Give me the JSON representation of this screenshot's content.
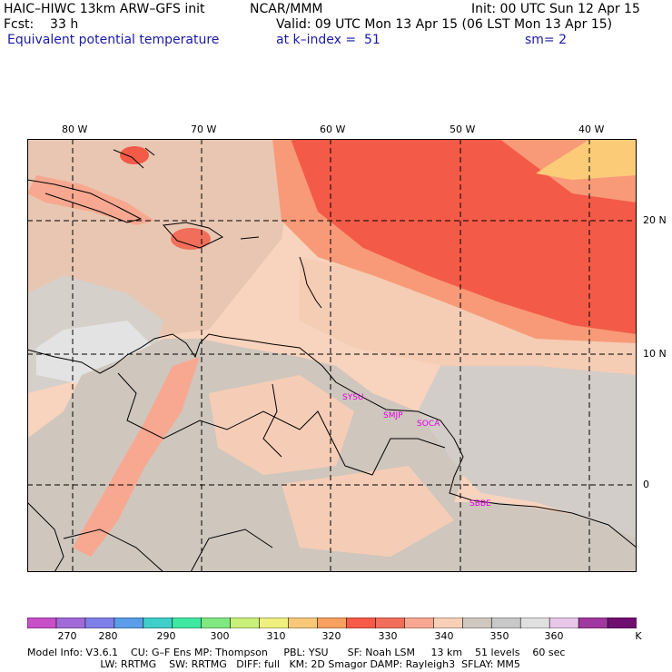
{
  "header": {
    "line1_left": "HAIC–HIWC 13km ARW–GFS init",
    "line1_center": "NCAR/MMM",
    "line1_right": "Init: 00 UTC Sun 12 Apr 15",
    "line2_left": "Fcst:    33 h",
    "line2_right": "Valid: 09 UTC Mon 13 Apr 15 (06 LST Mon 13 Apr 15)",
    "line3_left": "Equivalent potential temperature",
    "line3_center": "at k–index =  51",
    "line3_right": "sm= 2"
  },
  "map": {
    "lon_labels": [
      "80 W",
      "70 W",
      "60 W",
      "50 W",
      "40 W"
    ],
    "lat_labels": [
      "20 N",
      "10 N",
      "0"
    ],
    "stations": [
      "SYSU",
      "SMJP",
      "SOCA",
      "SBBE"
    ]
  },
  "colorbar": {
    "colors": [
      "#c94fc9",
      "#a06ad8",
      "#7f7fe8",
      "#5a9de8",
      "#3fcfc8",
      "#3fe8a0",
      "#80e880",
      "#c8f07a",
      "#f0f080",
      "#f8c878",
      "#f8a060",
      "#f85a48",
      "#f06e5a",
      "#f8a890",
      "#f8d0b8",
      "#d0c8c0",
      "#c8c8c8",
      "#e0e0e0",
      "#e8c8e8",
      "#a0389f",
      "#6f0f70"
    ],
    "tick_labels": [
      "270",
      "280",
      "290",
      "300",
      "310",
      "320",
      "330",
      "340",
      "350",
      "360"
    ],
    "unit": "K"
  },
  "colors": {
    "land_gray": "#cfc6bd",
    "sea_peach": "#f8d3bd",
    "warm_orange": "#f89a78",
    "hot_red": "#f45a48",
    "light_gray": "#d9d9d9",
    "yellow": "#fccb78"
  },
  "footer": {
    "line1": "Model Info: V3.6.1    CU: G–F Ens MP: Thompson     PBL: YSU      SF: Noah LSM     13 km    51 levels    60 sec",
    "line2": "                       LW: RRTMG    SW: RRTMG   DIFF: full   KM: 2D Smagor DAMP: Rayleigh3  SFLAY: MM5"
  }
}
